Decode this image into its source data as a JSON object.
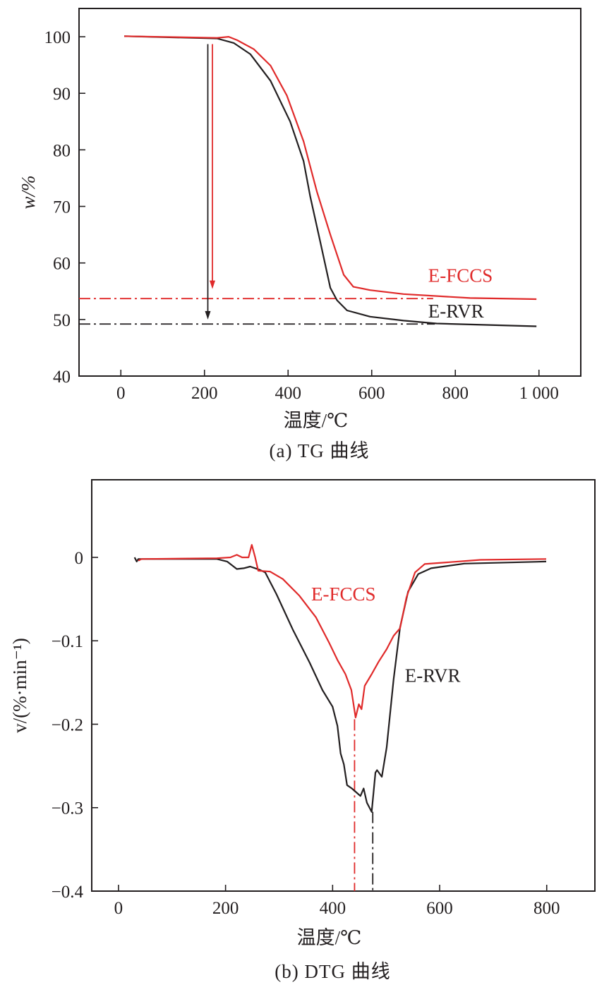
{
  "chart_data": [
    {
      "type": "line",
      "caption": "(a) TG 曲线",
      "xlabel": "温度/℃",
      "ylabel": "w/%",
      "xlim": [
        -100,
        1100
      ],
      "ylim": [
        40,
        105
      ],
      "xticks": [
        0,
        200,
        400,
        600,
        800,
        1000
      ],
      "xtick_labels": [
        "0",
        "200",
        "400",
        "600",
        "800",
        "1 000"
      ],
      "yticks": [
        40,
        50,
        60,
        70,
        80,
        90,
        100
      ],
      "ytick_labels": [
        "40",
        "50",
        "60",
        "70",
        "80",
        "90",
        "100"
      ],
      "grid": false,
      "series": [
        {
          "name": "E-RVR",
          "color": "#231f20",
          "x": [
            8,
            230,
            270,
            310,
            358,
            405,
            437,
            453,
            477,
            501,
            517,
            541,
            596,
            676,
            755,
            994
          ],
          "y": [
            100.1,
            99.7,
            98.9,
            96.9,
            92.2,
            85.0,
            78.0,
            71.7,
            63.7,
            55.6,
            53.4,
            51.6,
            50.5,
            49.8,
            49.3,
            48.8
          ]
        },
        {
          "name": "E-FCCS",
          "color": "#e02a2a",
          "x": [
            8,
            230,
            258,
            278,
            318,
            358,
            397,
            437,
            469,
            501,
            533,
            556,
            596,
            676,
            835,
            994
          ],
          "y": [
            100.1,
            99.8,
            100.0,
            99.4,
            97.8,
            94.9,
            89.6,
            81.5,
            72.6,
            65.0,
            57.9,
            55.8,
            55.2,
            54.5,
            53.8,
            53.6
          ]
        }
      ],
      "reference_lines": [
        {
          "series": "E-FCCS",
          "y": 53.7,
          "x_end": 747,
          "style": "dash-dot",
          "color": "#e02a2a"
        },
        {
          "series": "E-RVR",
          "y": 49.2,
          "x_end": 751,
          "style": "dash-dot",
          "color": "#231f20"
        }
      ],
      "arrows": [
        {
          "series": "E-RVR",
          "x": 208,
          "y_from": 98.7,
          "y_to": 50.0,
          "color": "#231f20"
        },
        {
          "series": "E-FCCS",
          "x": 219,
          "y_from": 98.7,
          "y_to": 55.4,
          "color": "#e02a2a"
        }
      ],
      "annotations": [
        {
          "text": "E-FCCS",
          "x": 735,
          "y": 57.9,
          "color": "#e02a2a"
        },
        {
          "text": "E-RVR",
          "x": 735,
          "y": 51.6,
          "color": "#231f20"
        }
      ]
    },
    {
      "type": "line",
      "caption": "(b) DTG 曲线",
      "xlabel": "温度/℃",
      "ylabel": "v/(%·min⁻¹)",
      "xlim": [
        -50,
        890
      ],
      "ylim": [
        -0.4,
        0.093
      ],
      "xticks": [
        0,
        200,
        400,
        600,
        800
      ],
      "xtick_labels": [
        "0",
        "200",
        "400",
        "600",
        "800"
      ],
      "yticks": [
        -0.4,
        -0.3,
        -0.2,
        -0.1,
        0
      ],
      "ytick_labels": [
        "−0.4",
        "−0.3",
        "−0.2",
        "−0.1",
        "0"
      ],
      "grid": false,
      "series": [
        {
          "name": "E-RVR",
          "color": "#231f20",
          "x": [
            30,
            34,
            37,
            184,
            203,
            221,
            234,
            246,
            264,
            274,
            295,
            326,
            357,
            381,
            400,
            409,
            415,
            421,
            427,
            436,
            452,
            458,
            464,
            473,
            480,
            483,
            492,
            501,
            514,
            526,
            541,
            560,
            584,
            646,
            799
          ],
          "y": [
            0,
            -0.005,
            -0.002,
            -0.002,
            -0.005,
            -0.014,
            -0.013,
            -0.011,
            -0.015,
            -0.018,
            -0.044,
            -0.087,
            -0.126,
            -0.159,
            -0.179,
            -0.202,
            -0.235,
            -0.248,
            -0.273,
            -0.277,
            -0.286,
            -0.277,
            -0.294,
            -0.305,
            -0.258,
            -0.255,
            -0.263,
            -0.228,
            -0.146,
            -0.084,
            -0.041,
            -0.02,
            -0.013,
            -0.0075,
            -0.005
          ]
        },
        {
          "name": "E-FCCS",
          "color": "#e02a2a",
          "x": [
            37,
            43,
            184,
            209,
            221,
            231,
            243,
            249,
            255,
            261,
            283,
            307,
            338,
            369,
            394,
            409,
            424,
            435,
            443,
            449,
            454,
            460,
            473,
            486,
            501,
            514,
            526,
            538,
            554,
            572,
            676,
            799
          ],
          "y": [
            -0.004,
            -0.002,
            -0.001,
            0,
            0.003,
            0,
            0,
            0.015,
            0.001,
            -0.016,
            -0.017,
            -0.026,
            -0.046,
            -0.072,
            -0.103,
            -0.123,
            -0.14,
            -0.159,
            -0.192,
            -0.176,
            -0.182,
            -0.154,
            -0.14,
            -0.125,
            -0.11,
            -0.094,
            -0.085,
            -0.048,
            -0.018,
            -0.008,
            -0.003,
            -0.002
          ]
        }
      ],
      "reference_lines": [
        {
          "series": "E-FCCS",
          "x": 441,
          "y_from": -0.194,
          "y_to": -0.4,
          "style": "dash-dot",
          "color": "#e02a2a"
        },
        {
          "series": "E-RVR",
          "x": 475,
          "y_from": -0.305,
          "y_to": -0.4,
          "style": "dash-dot",
          "color": "#231f20"
        }
      ],
      "annotations": [
        {
          "text": "E-FCCS",
          "x": 360,
          "y": -0.043,
          "color": "#e02a2a"
        },
        {
          "text": "E-RVR",
          "x": 535,
          "y": -0.141,
          "color": "#231f20"
        }
      ]
    }
  ]
}
